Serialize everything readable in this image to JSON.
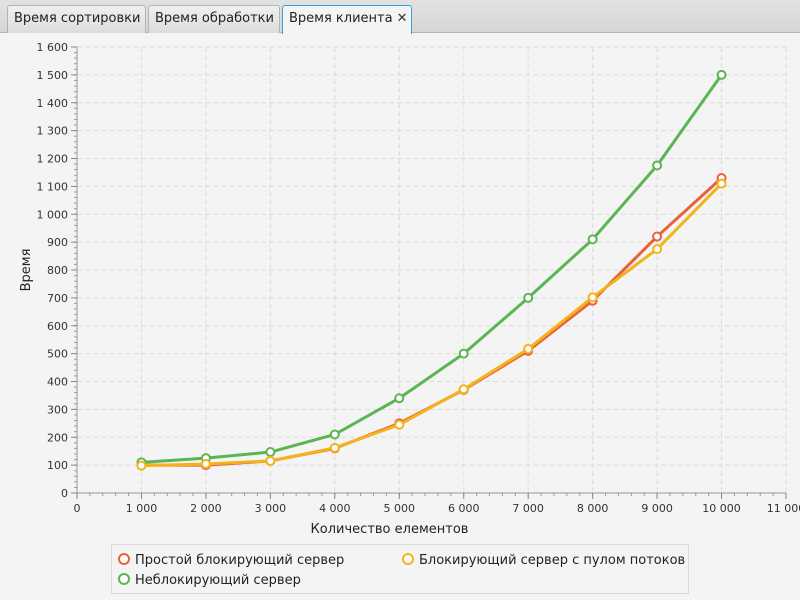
{
  "tabs": [
    {
      "label": "Время сортировки",
      "active": false
    },
    {
      "label": "Время обработки",
      "active": false
    },
    {
      "label": "Время клиента",
      "active": true,
      "close_glyph": "✕"
    }
  ],
  "chart_data": {
    "type": "line",
    "title": "",
    "xlabel": "Количество елементов",
    "ylabel": "Время",
    "xlim": [
      0,
      11000
    ],
    "ylim": [
      0,
      1600
    ],
    "x_ticks": [
      0,
      1000,
      2000,
      3000,
      4000,
      5000,
      6000,
      7000,
      8000,
      9000,
      10000,
      11000
    ],
    "x_tick_labels": [
      "0",
      "1 000",
      "2 000",
      "3 000",
      "4 000",
      "5 000",
      "6 000",
      "7 000",
      "8 000",
      "9 000",
      "10 000",
      "11 000"
    ],
    "y_ticks": [
      0,
      100,
      200,
      300,
      400,
      500,
      600,
      700,
      800,
      900,
      1000,
      1100,
      1200,
      1300,
      1400,
      1500,
      1600
    ],
    "y_tick_labels": [
      "0",
      "100",
      "200",
      "300",
      "400",
      "500",
      "600",
      "700",
      "800",
      "900",
      "1 000",
      "1 100",
      "1 200",
      "1 300",
      "1 400",
      "1 500",
      "1 600"
    ],
    "grid": true,
    "legend_position": "bottom",
    "x": [
      1000,
      2000,
      3000,
      4000,
      5000,
      6000,
      7000,
      8000,
      9000,
      10000
    ],
    "series": [
      {
        "name": "Простой блокирующий сервер",
        "color": "#e8603c",
        "values": [
          100,
          100,
          115,
          160,
          250,
          370,
          510,
          690,
          920,
          1130
        ]
      },
      {
        "name": "Неблокирующий сервер",
        "color": "#5ab552",
        "values": [
          110,
          125,
          147,
          210,
          340,
          500,
          700,
          910,
          1175,
          1500
        ]
      },
      {
        "name": "Блокирующий сервер с пулом потоков",
        "color": "#f3b31b",
        "values": [
          98,
          104,
          115,
          162,
          245,
          372,
          517,
          702,
          875,
          1110
        ]
      }
    ]
  }
}
